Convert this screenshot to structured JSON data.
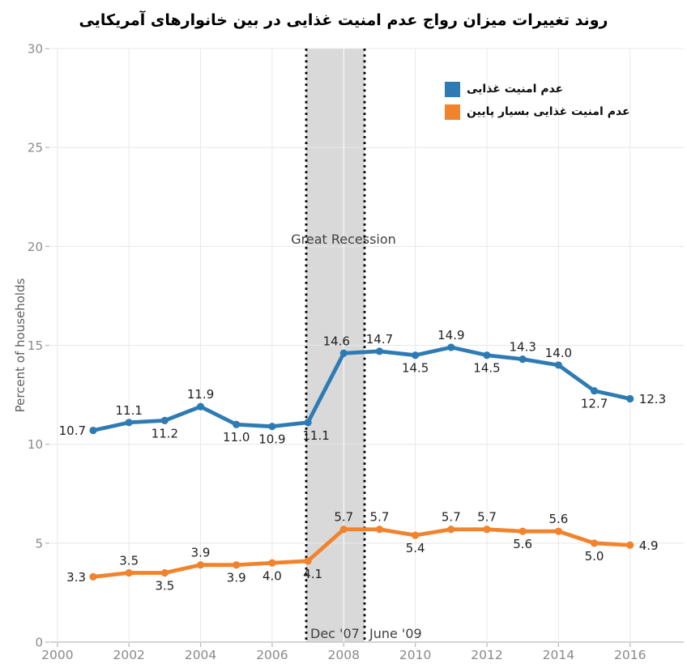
{
  "title": "روند تغییرات میزان رواج عدم امنیت غذایی در بین خانوارهای آمریکایی",
  "legend": {
    "items": [
      {
        "label": "عدم امنیت غذایی",
        "color": "#2e7bb4"
      },
      {
        "label": "عدم امنیت غذایی بسیار پایین",
        "color": "#f1832d"
      }
    ]
  },
  "chart_data": {
    "type": "line",
    "title": "روند تغییرات میزان رواج عدم امنیت غذایی در بین خانوارهای آمریکایی",
    "xlabel": "",
    "ylabel": "Percent of households",
    "xlim": [
      1999.8,
      2017.5
    ],
    "ylim": [
      0,
      30
    ],
    "x_ticks": [
      2000,
      2002,
      2004,
      2006,
      2008,
      2010,
      2012,
      2014,
      2016
    ],
    "y_ticks": [
      0,
      5,
      10,
      15,
      20,
      25,
      30
    ],
    "grid": true,
    "legend_position": "upper right",
    "colors": {
      "grid": "#e8e8e8",
      "axis": "#c6c6c6",
      "tick": "#b5b5b5",
      "tick_label": "#8a8a8a",
      "band": "#d9d9d9",
      "band_gridline": "#ffffff",
      "dotted_line": "#000000",
      "annotation": "#3f3f3f",
      "data_label": "#1f1f1f",
      "axis_title": "#5f5f5f"
    },
    "recession": {
      "label": "Great Recession",
      "start_label": "Dec '07",
      "end_label": "June '09"
    },
    "series": [
      {
        "name": "عدم امنیت غذایی",
        "color": "#2e7bb4",
        "points": [
          {
            "year": 2001,
            "value": 10.7,
            "label": "10.7",
            "pos": "left"
          },
          {
            "year": 2002,
            "value": 11.1,
            "label": "11.1",
            "pos": "above"
          },
          {
            "year": 2003,
            "value": 11.2,
            "label": "11.2",
            "pos": "below"
          },
          {
            "year": 2004,
            "value": 11.9,
            "label": "11.9",
            "pos": "above"
          },
          {
            "year": 2005,
            "value": 11.0,
            "label": "11.0",
            "pos": "below"
          },
          {
            "year": 2006,
            "value": 10.9,
            "label": "10.9",
            "pos": "below"
          },
          {
            "year": 2007,
            "value": 11.1,
            "label": "11.1",
            "pos": "below",
            "dx": 10
          },
          {
            "year": 2008,
            "value": 14.6,
            "label": "14.6",
            "pos": "above",
            "dx": -9
          },
          {
            "year": 2009,
            "value": 14.7,
            "label": "14.7",
            "pos": "above"
          },
          {
            "year": 2010,
            "value": 14.5,
            "label": "14.5",
            "pos": "below"
          },
          {
            "year": 2011,
            "value": 14.9,
            "label": "14.9",
            "pos": "above"
          },
          {
            "year": 2012,
            "value": 14.5,
            "label": "14.5",
            "pos": "below"
          },
          {
            "year": 2013,
            "value": 14.3,
            "label": "14.3",
            "pos": "above"
          },
          {
            "year": 2014,
            "value": 14.0,
            "label": "14.0",
            "pos": "above"
          },
          {
            "year": 2015,
            "value": 12.7,
            "label": "12.7",
            "pos": "below"
          },
          {
            "year": 2016,
            "value": 12.3,
            "label": "12.3",
            "pos": "right"
          }
        ]
      },
      {
        "name": "عدم امنیت غذایی بسیار پایین",
        "color": "#f1832d",
        "points": [
          {
            "year": 2001,
            "value": 3.3,
            "label": "3.3",
            "pos": "left"
          },
          {
            "year": 2002,
            "value": 3.5,
            "label": "3.5",
            "pos": "above"
          },
          {
            "year": 2003,
            "value": 3.5,
            "label": "3.5",
            "pos": "below"
          },
          {
            "year": 2004,
            "value": 3.9,
            "label": "3.9",
            "pos": "above"
          },
          {
            "year": 2005,
            "value": 3.9,
            "label": "3.9",
            "pos": "below"
          },
          {
            "year": 2006,
            "value": 4.0,
            "label": "4.0",
            "pos": "below"
          },
          {
            "year": 2007,
            "value": 4.1,
            "label": "4.1",
            "pos": "below",
            "dx": 6
          },
          {
            "year": 2008,
            "value": 5.7,
            "label": "5.7",
            "pos": "above"
          },
          {
            "year": 2009,
            "value": 5.7,
            "label": "5.7",
            "pos": "above"
          },
          {
            "year": 2010,
            "value": 5.4,
            "label": "5.4",
            "pos": "below"
          },
          {
            "year": 2011,
            "value": 5.7,
            "label": "5.7",
            "pos": "above"
          },
          {
            "year": 2012,
            "value": 5.7,
            "label": "5.7",
            "pos": "above"
          },
          {
            "year": 2013,
            "value": 5.6,
            "label": "5.6",
            "pos": "below"
          },
          {
            "year": 2014,
            "value": 5.6,
            "label": "5.6",
            "pos": "above"
          },
          {
            "year": 2015,
            "value": 5.0,
            "label": "5.0",
            "pos": "below"
          },
          {
            "year": 2016,
            "value": 4.9,
            "label": "4.9",
            "pos": "right"
          }
        ]
      }
    ]
  }
}
